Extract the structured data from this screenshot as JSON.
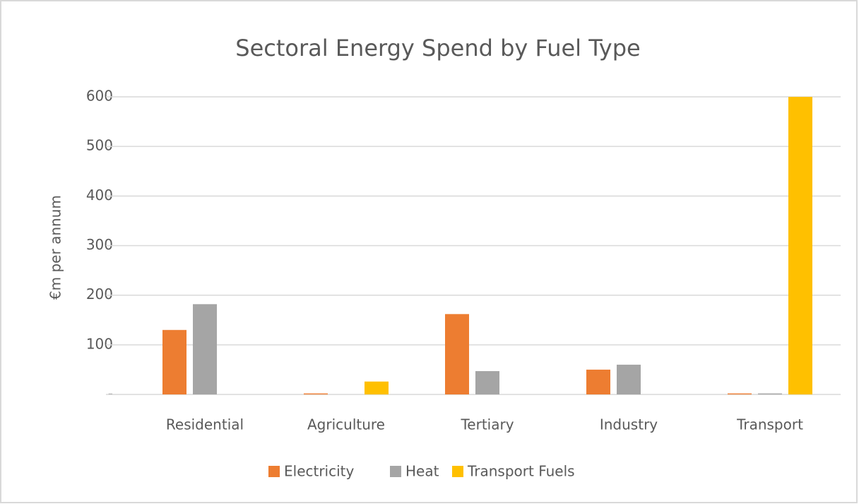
{
  "chart_data": {
    "type": "bar",
    "title": "Sectoral Energy Spend by Fuel Type",
    "y_label": "€m per annum",
    "categories": [
      "Residential",
      "Agriculture",
      "Tertiary",
      "Industry",
      "Transport"
    ],
    "series": [
      {
        "name": "Electricity",
        "color": "#ed7d31",
        "values": [
          130,
          2,
          162,
          50,
          2
        ]
      },
      {
        "name": "Heat",
        "color": "#a5a5a5",
        "values": [
          182,
          0,
          47,
          60,
          2
        ]
      },
      {
        "name": "Transport Fuels",
        "color": "#ffc000",
        "values": [
          0,
          26,
          0,
          0,
          600
        ]
      }
    ],
    "ylim": [
      0,
      600
    ],
    "yticks": [
      {
        "value": 0,
        "label": "-"
      },
      100,
      200,
      300,
      400,
      500,
      600
    ],
    "grid": true,
    "legend": "bottom"
  }
}
